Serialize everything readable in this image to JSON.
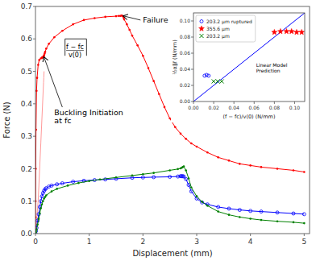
{
  "chart_data": [
    {
      "type": "line",
      "xlabel": "Displacement (mm)",
      "ylabel": "Force (N)",
      "xlim": [
        0,
        5.1
      ],
      "ylim": [
        0,
        0.7
      ],
      "xticks": [
        0,
        1,
        2,
        3,
        4,
        5
      ],
      "yticks": [
        {
          "value": 0,
          "label": "0.0"
        },
        0.1,
        0.2,
        0.3,
        0.4,
        0.5,
        0.6,
        0.7
      ],
      "grid": false,
      "series": [
        {
          "color": "#ff9999",
          "marker": "none",
          "x": [
            0.0,
            0.05,
            0.1,
            0.15,
            0.155,
            0.16
          ],
          "values": [
            0.0,
            0.1,
            0.28,
            0.465,
            0.48,
            0.5
          ]
        },
        {
          "color": "#ff0000",
          "marker": "dot",
          "x": [
            0.0,
            0.001,
            0.002,
            0.005,
            0.01,
            0.02,
            0.03,
            0.05,
            0.07,
            0.1,
            0.12,
            0.13,
            0.135,
            0.14,
            0.145,
            0.15,
            0.155,
            0.16,
            0.17,
            0.18,
            0.2,
            0.25,
            0.35,
            0.5,
            0.7,
            0.9,
            1.1,
            1.3,
            1.5,
            1.55,
            1.58,
            1.6,
            1.62,
            1.63,
            1.64,
            1.65,
            1.7,
            1.75,
            1.8,
            1.9,
            2.0,
            2.1,
            2.2,
            2.3,
            2.4,
            2.5,
            2.6,
            2.7,
            2.8,
            2.9,
            3.0,
            3.2,
            3.4,
            3.6,
            3.8,
            4.0,
            4.2,
            4.5,
            4.8,
            5.0
          ],
          "values": [
            0.0,
            0.05,
            0.1,
            0.2,
            0.32,
            0.44,
            0.48,
            0.52,
            0.535,
            0.54,
            0.542,
            0.543,
            0.543,
            0.544,
            0.544,
            0.545,
            0.547,
            0.55,
            0.555,
            0.56,
            0.57,
            0.585,
            0.605,
            0.625,
            0.645,
            0.658,
            0.664,
            0.668,
            0.67,
            0.671,
            0.671,
            0.672,
            0.671,
            0.67,
            0.665,
            0.66,
            0.645,
            0.628,
            0.61,
            0.58,
            0.548,
            0.51,
            0.47,
            0.43,
            0.39,
            0.355,
            0.328,
            0.308,
            0.292,
            0.278,
            0.268,
            0.25,
            0.235,
            0.225,
            0.215,
            0.21,
            0.205,
            0.2,
            0.195,
            0.19
          ]
        },
        {
          "color": "#0000ff",
          "marker": "circle",
          "x": [
            0.0,
            0.01,
            0.02,
            0.04,
            0.06,
            0.08,
            0.1,
            0.12,
            0.14,
            0.16,
            0.18,
            0.2,
            0.25,
            0.3,
            0.4,
            0.5,
            0.7,
            0.9,
            1.1,
            1.3,
            1.5,
            1.8,
            2.0,
            2.2,
            2.5,
            2.65,
            2.7,
            2.72,
            2.74,
            2.76,
            2.8,
            2.85,
            2.9,
            3.0,
            3.1,
            3.2,
            3.4,
            3.6,
            3.8,
            4.0,
            4.2,
            4.5,
            4.8,
            5.0
          ],
          "values": [
            0.0,
            0.008,
            0.018,
            0.04,
            0.06,
            0.082,
            0.1,
            0.115,
            0.125,
            0.132,
            0.137,
            0.14,
            0.145,
            0.148,
            0.152,
            0.155,
            0.16,
            0.163,
            0.165,
            0.167,
            0.169,
            0.172,
            0.173,
            0.174,
            0.175,
            0.176,
            0.177,
            0.177,
            0.177,
            0.176,
            0.168,
            0.15,
            0.13,
            0.108,
            0.096,
            0.09,
            0.082,
            0.077,
            0.073,
            0.07,
            0.068,
            0.065,
            0.062,
            0.06
          ]
        },
        {
          "color": "#008000",
          "marker": "dot",
          "x": [
            0.0,
            0.01,
            0.02,
            0.04,
            0.06,
            0.08,
            0.1,
            0.12,
            0.14,
            0.16,
            0.18,
            0.2,
            0.3,
            0.4,
            0.6,
            0.8,
            1.0,
            1.2,
            1.5,
            1.8,
            2.0,
            2.2,
            2.5,
            2.65,
            2.7,
            2.72,
            2.74,
            2.76,
            2.8,
            2.85,
            2.9,
            3.0,
            3.1,
            3.2,
            3.4,
            3.6,
            3.8,
            4.0,
            4.2,
            4.5,
            4.8,
            5.0
          ],
          "values": [
            0.0,
            0.005,
            0.012,
            0.028,
            0.045,
            0.062,
            0.078,
            0.09,
            0.1,
            0.108,
            0.113,
            0.118,
            0.13,
            0.138,
            0.148,
            0.156,
            0.162,
            0.167,
            0.173,
            0.179,
            0.183,
            0.187,
            0.195,
            0.199,
            0.201,
            0.203,
            0.205,
            0.207,
            0.195,
            0.17,
            0.142,
            0.115,
            0.098,
            0.086,
            0.068,
            0.058,
            0.051,
            0.046,
            0.042,
            0.038,
            0.035,
            0.032
          ]
        }
      ],
      "annotations": [
        {
          "text": "Failure",
          "x": 1.63,
          "y": 0.671,
          "text_x": 2.0,
          "text_y": 0.658
        },
        {
          "numerator": "f − fc",
          "denominator": "v(0)",
          "x": 0.735,
          "y": 0.562,
          "x0": 0.55,
          "x1": 0.95,
          "y0": 0.548,
          "y1": 0.6
        },
        {
          "text": "Buckling Initiation\nat fc",
          "x": 0.155,
          "y": 0.545,
          "text_x": 0.35,
          "text_y": 0.36
        }
      ]
    },
    {
      "type": "scatter",
      "xlabel": "(f − fc)/v(0) (N/mm)",
      "ylabel": "½α∥ℓ (N/mm)",
      "xlim": [
        0,
        0.11
      ],
      "ylim": [
        0,
        0.11
      ],
      "xticks": [
        {
          "value": 0,
          "label": "0.00"
        },
        0.02,
        0.04,
        0.06,
        0.08,
        {
          "value": 0.1,
          "label": "0.10"
        }
      ],
      "yticks": [
        {
          "value": 0,
          "label": "0.00"
        },
        0.02,
        0.04,
        0.06,
        0.08,
        {
          "value": 0.1,
          "label": "0.10"
        }
      ],
      "grid": false,
      "legend": "upper left",
      "series": [
        {
          "type": "line",
          "color": "#0000ff",
          "marker": "none",
          "x": [
            0,
            0.11
          ],
          "values": [
            0,
            0.11
          ]
        },
        {
          "name": "203.2 μm ruptured",
          "color": "#0000ff",
          "marker": "circle",
          "x": [
            0.011,
            0.013,
            0.015
          ],
          "values": [
            0.032,
            0.033,
            0.032
          ]
        },
        {
          "name": "355.6 μm",
          "color": "#ff0000",
          "marker": "star",
          "x": [
            0.08,
            0.086,
            0.092,
            0.097,
            0.102,
            0.107
          ],
          "values": [
            0.086,
            0.087,
            0.087,
            0.087,
            0.086,
            0.086
          ]
        },
        {
          "name": "203.2 μm",
          "color": "#008000",
          "marker": "x",
          "x": [
            0.02,
            0.024,
            0.028
          ],
          "values": [
            0.025,
            0.025,
            0.025
          ]
        }
      ],
      "annotations": [
        {
          "text": "Linear Model\nPrediction",
          "x": 0.062,
          "y": 0.05
        }
      ]
    }
  ]
}
